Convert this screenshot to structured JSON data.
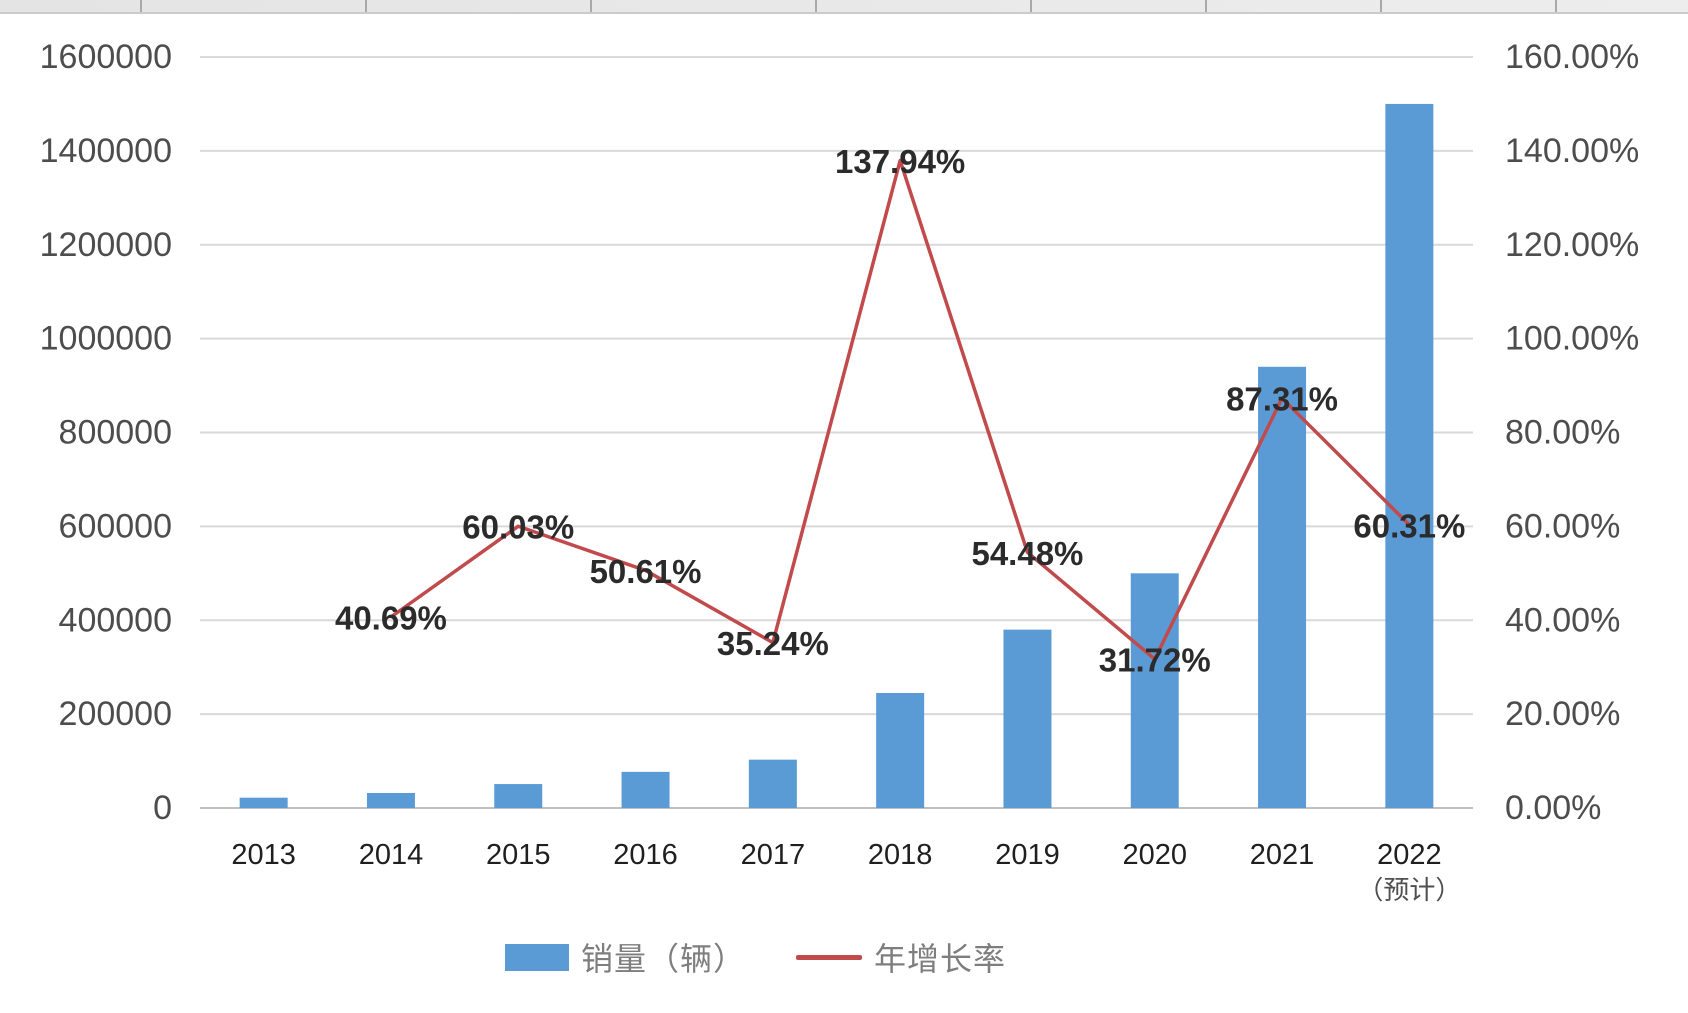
{
  "chart_data": {
    "type": "combo_bar_line",
    "title": "",
    "categories": [
      "2013",
      "2014",
      "2015",
      "2016",
      "2017",
      "2018",
      "2019",
      "2020",
      "2021",
      "2022"
    ],
    "category_sublabels": [
      "",
      "",
      "",
      "",
      "",
      "",
      "",
      "",
      "",
      "（预计）"
    ],
    "series": [
      {
        "name": "销量（辆）",
        "type": "bar",
        "axis": "left",
        "color": "#5b9bd5",
        "values": [
          22000,
          32000,
          51000,
          77000,
          103000,
          245000,
          380000,
          500000,
          940000,
          1500000
        ]
      },
      {
        "name": "年增长率",
        "type": "line",
        "axis": "right",
        "color": "#c14b4c",
        "values_percent": [
          null,
          40.69,
          60.03,
          50.61,
          35.24,
          137.94,
          54.48,
          31.72,
          87.31,
          60.31
        ],
        "data_labels": [
          "",
          "40.69%",
          "60.03%",
          "50.61%",
          "35.24%",
          "137.94%",
          "54.48%",
          "31.72%",
          "87.31%",
          "60.31%"
        ]
      }
    ],
    "left_axis": {
      "min": 0,
      "max": 1600000,
      "step": 200000,
      "tick_labels": [
        "0",
        "200000",
        "400000",
        "600000",
        "800000",
        "1000000",
        "1200000",
        "1400000",
        "1600000"
      ]
    },
    "right_axis": {
      "min": 0,
      "max": 160,
      "step": 20,
      "tick_labels": [
        "0.00%",
        "20.00%",
        "40.00%",
        "60.00%",
        "80.00%",
        "100.00%",
        "120.00%",
        "140.00%",
        "160.00%"
      ]
    },
    "legend": {
      "position": "bottom",
      "items": [
        {
          "label": "销量（辆）",
          "marker": "bar",
          "color": "#5b9bd5"
        },
        {
          "label": "年增长率",
          "marker": "line",
          "color": "#c14b4c"
        }
      ]
    },
    "grid": true
  },
  "colors": {
    "bar": "#5b9bd5",
    "line": "#c14b4c",
    "gridline": "#d9d9d9",
    "axis_line": "#c0c0c0",
    "tick_text": "#4d4d4d",
    "year_text": "#1f1f1f",
    "sublabel_text": "#4f4f4f",
    "data_label_text": "#2b2b2b",
    "legend_text": "#7e7e7e"
  }
}
